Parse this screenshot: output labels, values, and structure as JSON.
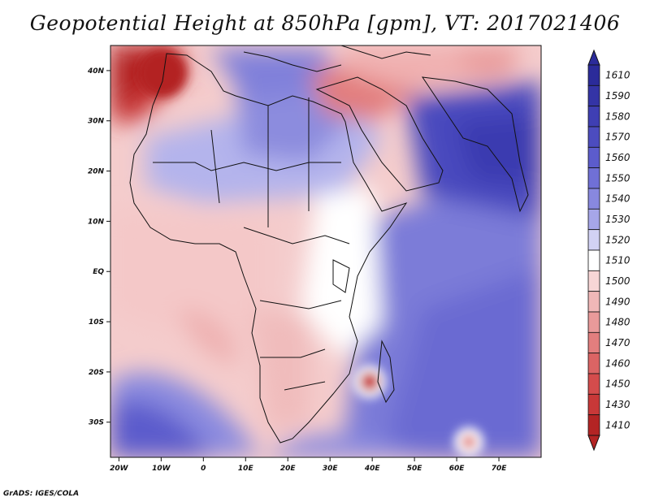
{
  "title": "Geopotential Height at 850hPa [gpm], VT: 2017021406",
  "footer": "GrADS: IGES/COLA",
  "map": {
    "lat_ticks": [
      {
        "lat": 40,
        "label": "40N"
      },
      {
        "lat": 30,
        "label": "30N"
      },
      {
        "lat": 20,
        "label": "20N"
      },
      {
        "lat": 10,
        "label": "10N"
      },
      {
        "lat": 0,
        "label": "EQ"
      },
      {
        "lat": -10,
        "label": "10S"
      },
      {
        "lat": -20,
        "label": "20S"
      },
      {
        "lat": -30,
        "label": "30S"
      }
    ],
    "lon_ticks": [
      {
        "lon": -20,
        "label": "20W"
      },
      {
        "lon": -10,
        "label": "10W"
      },
      {
        "lon": 0,
        "label": "0"
      },
      {
        "lon": 10,
        "label": "10E"
      },
      {
        "lon": 20,
        "label": "20E"
      },
      {
        "lon": 30,
        "label": "30E"
      },
      {
        "lon": 40,
        "label": "40E"
      },
      {
        "lon": 50,
        "label": "50E"
      },
      {
        "lon": 60,
        "label": "60E"
      },
      {
        "lon": 70,
        "label": "70E"
      }
    ],
    "lon_range": [
      -22,
      80
    ],
    "lat_range": [
      -37,
      45
    ]
  },
  "colorbar": {
    "levels": [
      {
        "label": "1610",
        "color": "#2b2b9a"
      },
      {
        "label": "1590",
        "color": "#3434a6"
      },
      {
        "label": "1580",
        "color": "#3f3fb3"
      },
      {
        "label": "1570",
        "color": "#4c4cbf"
      },
      {
        "label": "1560",
        "color": "#5c5ccc"
      },
      {
        "label": "1550",
        "color": "#7070d6"
      },
      {
        "label": "1540",
        "color": "#8888df"
      },
      {
        "label": "1530",
        "color": "#a6a6e8"
      },
      {
        "label": "1520",
        "color": "#d2d2f4"
      },
      {
        "label": "1510",
        "color": "#ffffff"
      },
      {
        "label": "1500",
        "color": "#f7d6d6"
      },
      {
        "label": "1490",
        "color": "#f0b7b7"
      },
      {
        "label": "1480",
        "color": "#e99a9a"
      },
      {
        "label": "1470",
        "color": "#e27e7e"
      },
      {
        "label": "1460",
        "color": "#db6464"
      },
      {
        "label": "1450",
        "color": "#d44c4c"
      },
      {
        "label": "1430",
        "color": "#c83838"
      },
      {
        "label": "1410",
        "color": "#b32424"
      }
    ]
  }
}
